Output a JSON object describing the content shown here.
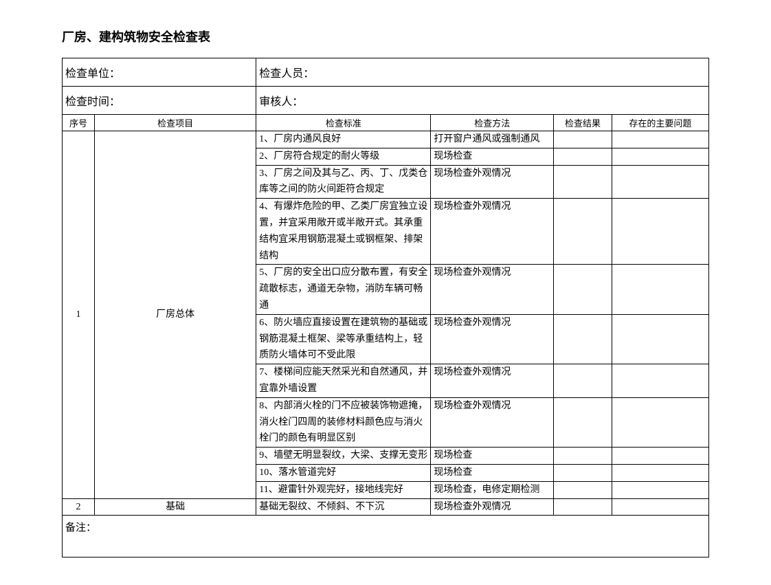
{
  "title": "厂房、建构筑物安全检查表",
  "meta": {
    "unit_label": "检查单位：",
    "personnel_label": "检查人员：",
    "time_label": "检查时间：",
    "auditor_label": "审核人："
  },
  "headers": {
    "seq": "序号",
    "item": "检查项目",
    "standard": "检查标准",
    "method": "检查方法",
    "result": "检查结果",
    "issues": "存在的主要问题"
  },
  "group1": {
    "seq": "1",
    "item": "厂房总体",
    "rows": [
      {
        "standard": "1、厂房内通风良好",
        "method": "打开窗户通风或强制通风"
      },
      {
        "standard": "2、厂房符合规定的耐火等级",
        "method": "现场检查"
      },
      {
        "standard": "3、厂房之间及其与乙、丙、丁、戊类仓库等之间的防火间距符合规定",
        "method": "现场检查外观情况"
      },
      {
        "standard": "4、有爆炸危险的甲、乙类厂房宜独立设置，并宜采用敞开或半敞开式。其承重结构宜采用钢筋混凝土或钢框架、排架结构",
        "method": "现场检查外观情况"
      },
      {
        "standard": "5、厂房的安全出口应分散布置，有安全疏散标志，通道无杂物，消防车辆可畅通",
        "method": "现场检查外观情况"
      },
      {
        "standard": "6、防火墙应直接设置在建筑物的基础或钢筋混凝土框架、梁等承重结构上，轻质防火墙体可不受此限",
        "method": "现场检查外观情况"
      },
      {
        "standard": "7、楼梯间应能天然采光和自然通风，并宜靠外墙设置",
        "method": "现场检查外观情况"
      },
      {
        "standard": "8、内部消火栓的门不应被装饰物遮掩，消火栓门四周的装修材料颜色应与消火栓门的颜色有明显区别",
        "method": "现场检查外观情况"
      },
      {
        "standard": "9、墙壁无明显裂纹，大梁、支撑无变形",
        "method": "现场检查"
      },
      {
        "standard": "10、落水管道完好",
        "method": "现场检查"
      },
      {
        "standard": "11、避雷针外观完好，接地线完好",
        "method": "现场检查，电修定期检测"
      }
    ]
  },
  "group2": {
    "seq": "2",
    "item": "基础",
    "standard": "基础无裂纹、不倾斜、不下沉",
    "method": "现场检查外观情况"
  },
  "remark_label": "备注："
}
